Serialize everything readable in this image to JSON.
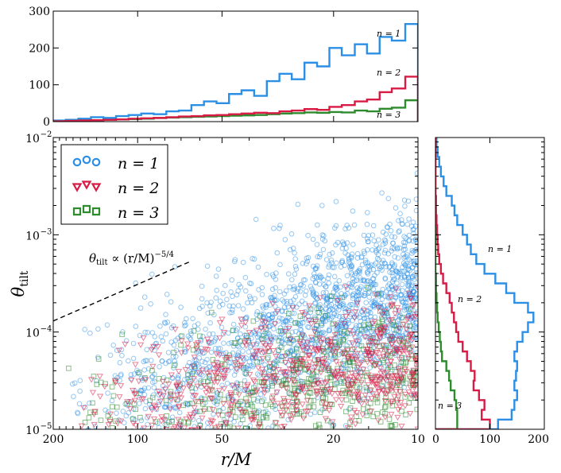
{
  "colors": {
    "n1": "#2b8fe6",
    "n2": "#d81b45",
    "n3": "#2e8b2e"
  },
  "chart_data": [
    {
      "panel": "main",
      "type": "scatter",
      "xlabel": "r/M",
      "ylabel": "θ_tilt",
      "x_scale": "log-reversed",
      "y_scale": "log",
      "xlim": [
        200,
        10
      ],
      "ylim": [
        1e-05,
        0.01
      ],
      "x_ticks": [
        200,
        100,
        50,
        20,
        10
      ],
      "x_tick_labels": [
        "200",
        "100",
        "50",
        "20",
        "10"
      ],
      "y_ticks": [
        1e-05,
        0.0001,
        0.001,
        0.01
      ],
      "y_tick_labels": [
        {
          "base": "10",
          "exp": "−5"
        },
        {
          "base": "10",
          "exp": "−4"
        },
        {
          "base": "10",
          "exp": "−3"
        },
        {
          "base": "10",
          "exp": "−2"
        }
      ],
      "legend": {
        "position": "upper-left",
        "entries": [
          {
            "series": "n1",
            "marker": "circle",
            "label": "n = 1"
          },
          {
            "series": "n2",
            "marker": "triangle-down",
            "label": "n = 2"
          },
          {
            "series": "n3",
            "marker": "square",
            "label": "n = 3"
          }
        ]
      },
      "annotation": {
        "text_prefix": "θ",
        "text_sub": "tilt",
        "text_mid": " ∝ (r/M)",
        "text_sup": "−5/4",
        "line": {
          "style": "dashed",
          "from": [
            200,
            0.00013
          ],
          "to": [
            65,
            0.00053
          ]
        }
      },
      "series": [
        {
          "key": "n1",
          "marker": "circle",
          "approx_count": 1700,
          "x_range": [
            200,
            10
          ],
          "median_theta_at_r10": 0.0003,
          "median_theta_at_r100": 3e-05
        },
        {
          "key": "n2",
          "marker": "triangle-down",
          "approx_count": 700,
          "x_range": [
            200,
            10
          ],
          "median_theta_at_r10": 6e-05,
          "median_theta_at_r100": 2e-05
        },
        {
          "key": "n3",
          "marker": "square",
          "approx_count": 500,
          "x_range": [
            200,
            10
          ],
          "median_theta_at_r10": 4.5e-05,
          "median_theta_at_r100": 1.8e-05
        }
      ]
    },
    {
      "panel": "top",
      "type": "step-histogram",
      "x": "r/M (log bins, 200 → 10)",
      "ylim": [
        0,
        300
      ],
      "y_ticks": [
        0,
        100,
        200,
        300
      ],
      "y_tick_labels": [
        "0",
        "100",
        "200",
        "300"
      ],
      "bin_edges": [
        200,
        180.4,
        162.7,
        146.7,
        132.4,
        119.4,
        107.7,
        97.1,
        87.6,
        79.0,
        71.3,
        64.3,
        58.0,
        52.3,
        47.2,
        42.6,
        38.4,
        34.6,
        31.2,
        28.2,
        25.4,
        22.9,
        20.7,
        18.7,
        16.8,
        15.2,
        13.7,
        12.4,
        11.1,
        10.0
      ],
      "series": [
        {
          "key": "n1",
          "label": "n = 1",
          "values": [
            3,
            5,
            8,
            12,
            10,
            15,
            18,
            22,
            20,
            28,
            30,
            45,
            55,
            50,
            75,
            85,
            70,
            110,
            130,
            115,
            160,
            150,
            200,
            180,
            210,
            185,
            230,
            220,
            265
          ]
        },
        {
          "key": "n2",
          "label": "n = 2",
          "values": [
            1,
            2,
            3,
            4,
            5,
            6,
            8,
            9,
            10,
            12,
            14,
            15,
            17,
            18,
            20,
            22,
            24,
            23,
            28,
            30,
            34,
            32,
            40,
            45,
            55,
            60,
            80,
            90,
            122
          ]
        },
        {
          "key": "n3",
          "label": "n = 3",
          "values": [
            1,
            2,
            3,
            4,
            5,
            6,
            7,
            8,
            10,
            11,
            12,
            13,
            14,
            15,
            16,
            17,
            18,
            20,
            22,
            23,
            25,
            24,
            26,
            25,
            30,
            28,
            35,
            38,
            58
          ]
        }
      ],
      "labels": [
        {
          "text": "n = 1",
          "series": "n1"
        },
        {
          "text": "n = 2",
          "series": "n2"
        },
        {
          "text": "n = 3",
          "series": "n3"
        }
      ]
    },
    {
      "panel": "right",
      "type": "step-histogram-horizontal",
      "y": "θ_tilt (log bins, 1e-5 → 1e-2)",
      "xlim": [
        0,
        200
      ],
      "x_ticks": [
        0,
        100,
        200
      ],
      "x_tick_labels": [
        "0",
        "100",
        "200"
      ],
      "bin_edges_log10": [
        -5.0,
        -4.9,
        -4.8,
        -4.7,
        -4.6,
        -4.5,
        -4.4,
        -4.3,
        -4.2,
        -4.1,
        -4.0,
        -3.9,
        -3.8,
        -3.7,
        -3.6,
        -3.5,
        -3.4,
        -3.3,
        -3.2,
        -3.1,
        -3.0,
        -2.9,
        -2.8,
        -2.7,
        -2.6,
        -2.5,
        -2.4,
        -2.3,
        -2.2,
        -2.1,
        -2.0
      ],
      "series": [
        {
          "key": "n1",
          "label": "n = 1",
          "values": [
            115,
            140,
            145,
            150,
            145,
            148,
            150,
            145,
            150,
            160,
            170,
            180,
            170,
            145,
            130,
            110,
            90,
            75,
            65,
            58,
            50,
            40,
            35,
            30,
            20,
            15,
            10,
            7,
            4,
            2
          ]
        },
        {
          "key": "n2",
          "label": "n = 2",
          "values": [
            100,
            85,
            90,
            80,
            70,
            72,
            65,
            58,
            50,
            42,
            38,
            34,
            30,
            26,
            20,
            14,
            10,
            7,
            5,
            4,
            3,
            2,
            1,
            1,
            0,
            0,
            0,
            0,
            0,
            0
          ]
        },
        {
          "key": "n3",
          "label": "n = 3",
          "values": [
            40,
            40,
            38,
            35,
            28,
            25,
            20,
            12,
            10,
            8,
            6,
            4,
            3,
            2,
            1,
            1,
            0,
            0,
            0,
            0,
            0,
            0,
            0,
            0,
            0,
            0,
            0,
            0,
            0,
            0
          ]
        }
      ],
      "labels": [
        {
          "text": "n = 1",
          "series": "n1"
        },
        {
          "text": "n = 2",
          "series": "n2"
        },
        {
          "text": "n = 3",
          "series": "n3"
        }
      ]
    }
  ]
}
